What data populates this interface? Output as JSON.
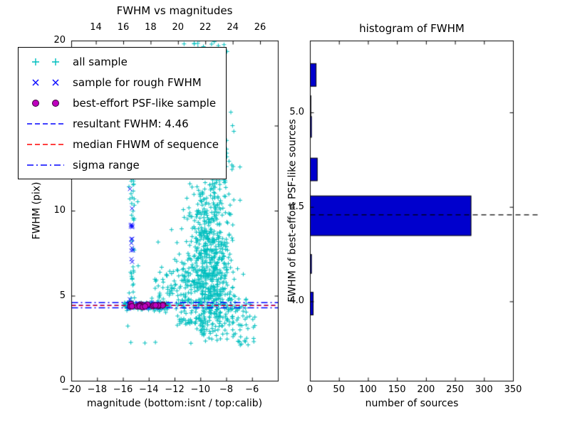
{
  "figure": {
    "background": "#ffffff"
  },
  "legend": {
    "entries": [
      {
        "label": "all sample",
        "type": "plus",
        "color": "#00bfbf"
      },
      {
        "label": "sample for rough FWHM",
        "type": "x",
        "color": "#0000ff"
      },
      {
        "label": "best-effort PSF-like sample",
        "type": "circle",
        "color": "#bf00bf",
        "edge": "#3a003a"
      },
      {
        "label": "resultant FWHM: 4.46",
        "type": "dashed",
        "color": "#0000ff"
      },
      {
        "label": "median FHWM of sequence",
        "type": "dashed",
        "color": "#ff0000"
      },
      {
        "label": "sigma range",
        "type": "dashdot",
        "color": "#0000ff"
      }
    ]
  },
  "chart_data": [
    {
      "type": "scatter",
      "title": "FWHM vs magnitudes",
      "xlabel": "magnitude (bottom:isnt / top:calib)",
      "ylabel": "FWHM (pix)",
      "xlim": [
        -20,
        -4
      ],
      "ylim": [
        0,
        20
      ],
      "top_xlim": [
        12.2,
        27.3
      ],
      "x_ticks": [
        -20,
        -18,
        -16,
        -14,
        -12,
        -10,
        -8,
        -6
      ],
      "x_tick_labels": [
        "−20",
        "−18",
        "−16",
        "−14",
        "−12",
        "−10",
        "−8",
        "−6"
      ],
      "top_ticks": [
        14,
        16,
        18,
        20,
        22,
        24,
        26
      ],
      "y_ticks": [
        0,
        5,
        10,
        15,
        20
      ],
      "y_tick_labels": [
        "0",
        "5",
        "10",
        "15",
        "20"
      ],
      "seed": 20,
      "series": [
        {
          "name": "all sample",
          "marker": "plus",
          "color": "#00bfbf",
          "clusters": [
            {
              "count": 500,
              "mag": {
                "dist": "normal",
                "mu": -9.4,
                "sigma": 0.9,
                "min": -12.3,
                "max": -6.4
              },
              "fwhm": {
                "dist": "normal",
                "mu": 6.2,
                "sigma": 2.1,
                "min": 2.4,
                "max": 12.5
              }
            },
            {
              "count": 260,
              "mag": {
                "dist": "normal",
                "mu": -9.3,
                "sigma": 0.85,
                "min": -12.0,
                "max": -6.6
              },
              "fwhm": {
                "dist": "normal",
                "mu": 9.5,
                "sigma": 3.0,
                "min": 3.0,
                "max": 18.5
              }
            },
            {
              "count": 150,
              "mag": {
                "dist": "normal",
                "mu": -9.6,
                "sigma": 0.75,
                "min": -11.8,
                "max": -7.4
              },
              "fwhm": {
                "dist": "uniform",
                "min": 12.0,
                "max": 20.4
              }
            },
            {
              "count": 130,
              "mag": {
                "dist": "uniform",
                "min": -11.9,
                "max": -6.3
              },
              "fwhm": {
                "dist": "normal",
                "mu": 4.3,
                "sigma": 1.1,
                "min": 2.1,
                "max": 7.5
              }
            },
            {
              "count": 48,
              "mag": {
                "dist": "normal",
                "mu": -15.3,
                "sigma": 0.1,
                "min": -15.6,
                "max": -15.0
              },
              "fwhm": {
                "dist": "uniform",
                "min": 4.2,
                "max": 13.6
              }
            },
            {
              "count": 130,
              "mag": {
                "dist": "uniform",
                "min": -15.9,
                "max": -12.4
              },
              "fwhm": {
                "dist": "normal",
                "mu": 4.45,
                "sigma": 0.13,
                "min": 4.1,
                "max": 4.9
              }
            },
            {
              "count": 70,
              "mag": {
                "dist": "uniform",
                "min": -13.6,
                "max": -10.9
              },
              "fwhm": {
                "dist": "normal",
                "mu": 5.4,
                "sigma": 0.95,
                "min": 3.9,
                "max": 8.2
              }
            },
            {
              "count": 30,
              "mag": {
                "dist": "uniform",
                "min": -8.2,
                "max": -5.6
              },
              "fwhm": {
                "dist": "uniform",
                "min": 2.0,
                "max": 4.6
              }
            },
            {
              "count": 30,
              "mag": {
                "dist": "uniform",
                "min": -15.8,
                "max": -6.2
              },
              "fwhm": {
                "dist": "uniform",
                "min": 2.2,
                "max": 16.0
              }
            }
          ]
        },
        {
          "name": "sample for rough FWHM",
          "marker": "x",
          "color": "#0000ff",
          "clusters": [
            {
              "count": 18,
              "mag": {
                "dist": "normal",
                "mu": -15.33,
                "sigma": 0.07,
                "min": -15.55,
                "max": -15.1
              },
              "fwhm": {
                "dist": "uniform",
                "min": 4.3,
                "max": 13.2
              }
            },
            {
              "count": 42,
              "mag": {
                "dist": "uniform",
                "min": -15.6,
                "max": -12.7
              },
              "fwhm": {
                "dist": "normal",
                "mu": 4.45,
                "sigma": 0.1,
                "min": 4.2,
                "max": 4.75
              }
            }
          ]
        },
        {
          "name": "best-effort PSF-like sample",
          "marker": "circle",
          "color": "#bf00bf",
          "edge": "#3a003a",
          "clusters": [
            {
              "count": 16,
              "mag": {
                "dist": "uniform",
                "min": -15.55,
                "max": -14.1
              },
              "fwhm": {
                "dist": "normal",
                "mu": 4.44,
                "sigma": 0.05,
                "min": 4.3,
                "max": 4.6
              }
            },
            {
              "count": 8,
              "mag": {
                "dist": "uniform",
                "min": -14.1,
                "max": -12.9
              },
              "fwhm": {
                "dist": "normal",
                "mu": 4.44,
                "sigma": 0.04,
                "min": 4.33,
                "max": 4.55
              }
            }
          ]
        }
      ],
      "lines": [
        {
          "name": "resultant FWHM",
          "y": 4.46,
          "color": "#0000ff",
          "style": "dashed"
        },
        {
          "name": "median FHWM of sequence",
          "y": 4.44,
          "color": "#ff0000",
          "style": "dashed"
        },
        {
          "name": "sigma range low",
          "y": 4.31,
          "color": "#0000ff",
          "style": "dashdot"
        },
        {
          "name": "sigma range high",
          "y": 4.61,
          "color": "#0000ff",
          "style": "dashdot"
        }
      ],
      "resultant_fwhm": 4.46
    },
    {
      "type": "bar",
      "orientation": "horizontal",
      "title": "histogram of FWHM",
      "xlabel": "number of sources",
      "ylabel": "FWHM of best-effort PSF-like sources",
      "xlim": [
        0,
        350
      ],
      "ylim": [
        3.58,
        5.38
      ],
      "x_ticks": [
        0,
        50,
        100,
        150,
        200,
        250,
        300,
        350
      ],
      "y_ticks": [
        4.0,
        4.5,
        5.0
      ],
      "y_tick_labels": [
        "4.0",
        "4.5",
        "5.0"
      ],
      "bar_color": "#0000cd",
      "bar_edge": "#000000",
      "bars": [
        {
          "fwhm_lo": 5.14,
          "fwhm_hi": 5.26,
          "count": 10
        },
        {
          "fwhm_lo": 4.98,
          "fwhm_hi": 5.09,
          "count": 1
        },
        {
          "fwhm_lo": 4.87,
          "fwhm_hi": 4.98,
          "count": 2
        },
        {
          "fwhm_lo": 4.64,
          "fwhm_hi": 4.76,
          "count": 12
        },
        {
          "fwhm_lo": 4.35,
          "fwhm_hi": 4.56,
          "count": 277
        },
        {
          "fwhm_lo": 4.15,
          "fwhm_hi": 4.25,
          "count": 2
        },
        {
          "fwhm_lo": 3.93,
          "fwhm_hi": 4.05,
          "count": 5
        }
      ],
      "dashed_line_y": 4.46,
      "dashed_line_color": "#000000"
    }
  ]
}
